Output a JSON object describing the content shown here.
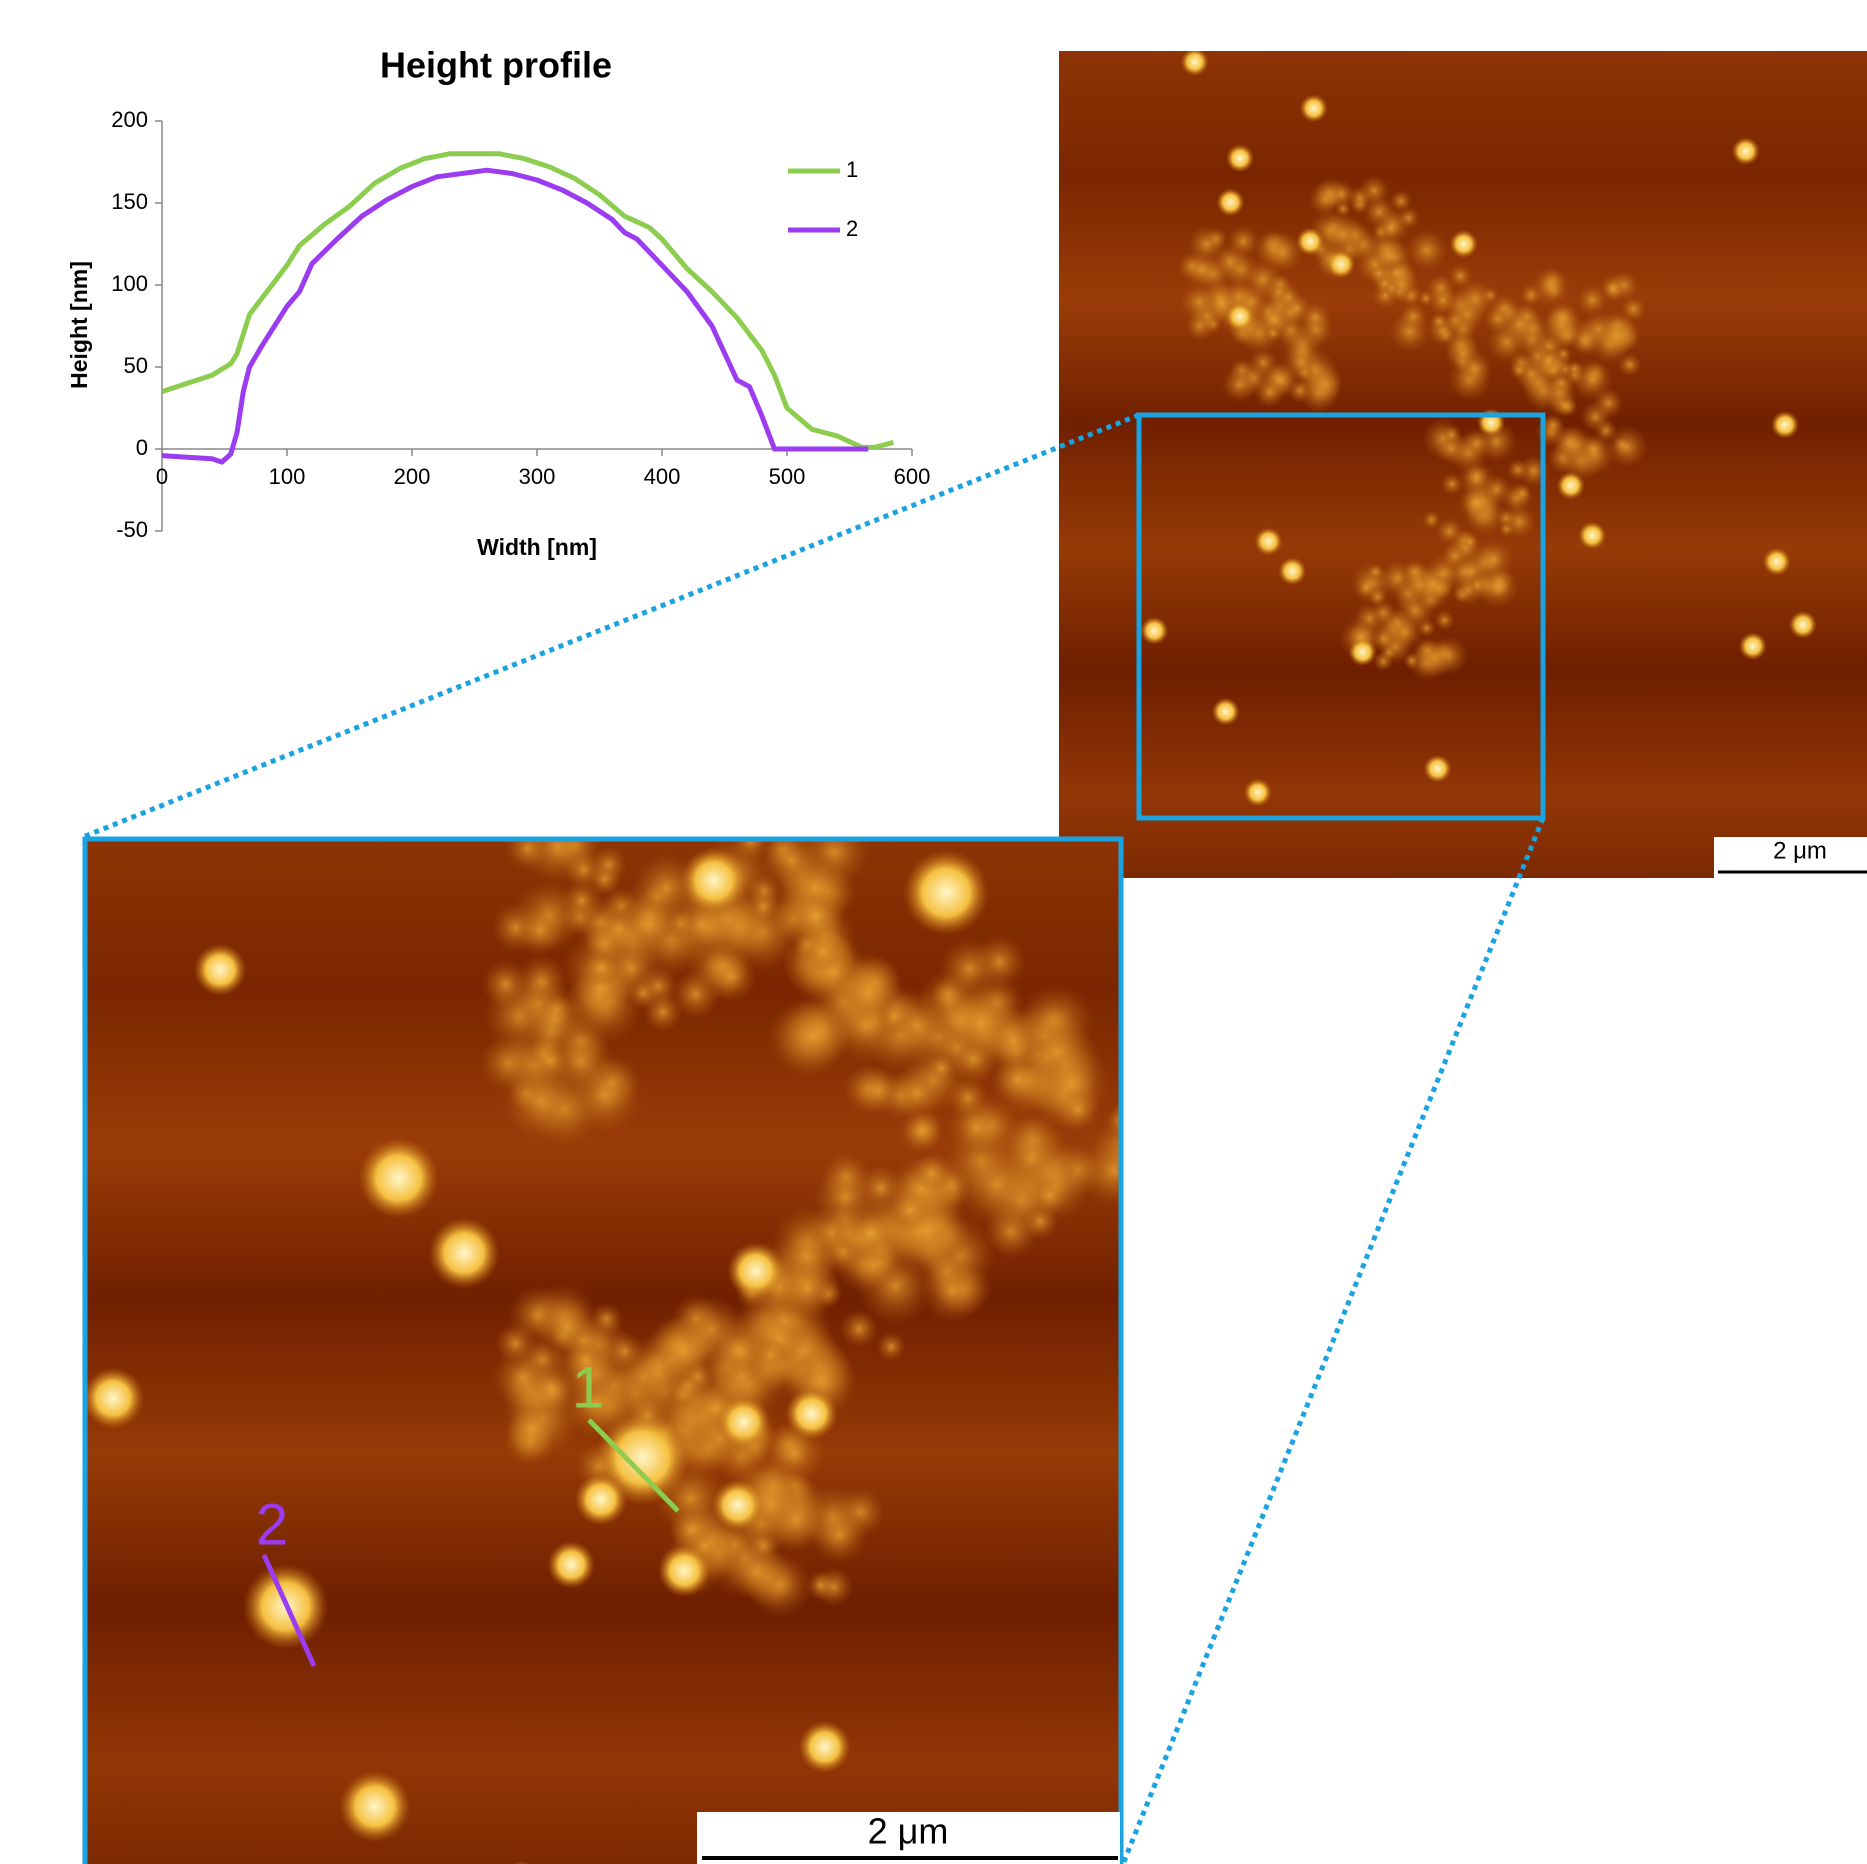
{
  "chart_data": {
    "type": "line",
    "title": "Height profile",
    "x_label": "Width [nm]",
    "y_label": "Height [nm]",
    "xlim": [
      0,
      600
    ],
    "ylim": [
      -50,
      200
    ],
    "xticks": [
      0,
      100,
      200,
      300,
      400,
      500,
      600
    ],
    "yticks": [
      -50,
      0,
      50,
      100,
      150,
      200
    ],
    "grid": false,
    "legend": "right",
    "series": [
      {
        "name": "1",
        "color": "#8ccd4f",
        "x": [
          0,
          20,
          40,
          55,
          60,
          70,
          80,
          100,
          110,
          130,
          150,
          170,
          190,
          210,
          230,
          250,
          270,
          290,
          310,
          330,
          350,
          370,
          390,
          400,
          420,
          440,
          460,
          480,
          490,
          500,
          520,
          540,
          560,
          570,
          585
        ],
        "values": [
          35,
          40,
          45,
          52,
          58,
          82,
          92,
          112,
          124,
          137,
          148,
          162,
          171,
          177,
          180,
          180,
          180,
          177,
          172,
          165,
          155,
          142,
          135,
          128,
          110,
          96,
          80,
          60,
          45,
          25,
          12,
          8,
          1,
          1,
          4
        ]
      },
      {
        "name": "2",
        "color": "#9b3cf0",
        "x": [
          0,
          20,
          40,
          48,
          55,
          60,
          65,
          70,
          80,
          90,
          100,
          110,
          120,
          140,
          160,
          180,
          200,
          220,
          240,
          260,
          280,
          300,
          320,
          340,
          360,
          370,
          380,
          400,
          420,
          440,
          460,
          470,
          480,
          490,
          500,
          550,
          565
        ],
        "values": [
          -4,
          -5,
          -6,
          -8,
          -3,
          10,
          35,
          50,
          63,
          75,
          87,
          96,
          113,
          128,
          142,
          152,
          160,
          166,
          168,
          170,
          168,
          164,
          158,
          150,
          140,
          132,
          128,
          112,
          96,
          75,
          42,
          38,
          20,
          0,
          0,
          0,
          0
        ]
      }
    ]
  },
  "figure": {
    "overview_scale_bar": "2 μm",
    "zoom_scale_bar": "2 μm",
    "profile_labels": [
      "1",
      "2"
    ]
  }
}
